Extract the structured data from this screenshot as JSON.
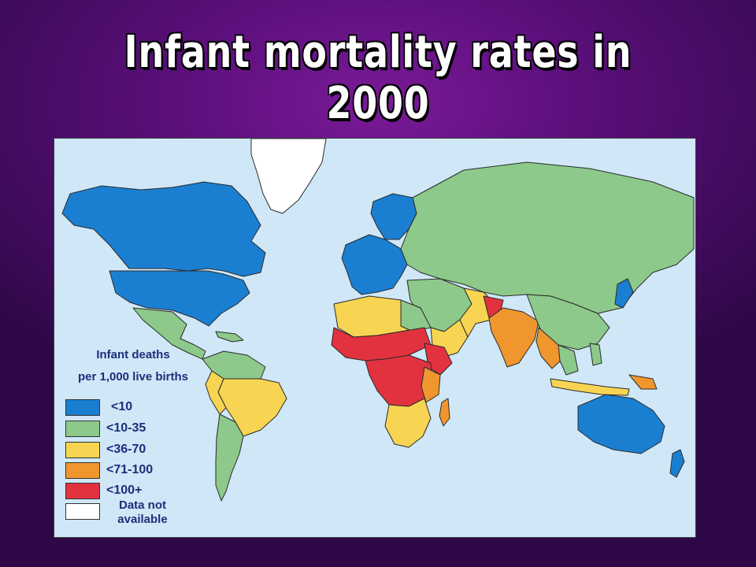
{
  "slide": {
    "title": "Infant mortality rates in 2000"
  },
  "legend": {
    "title_line1": "Infant deaths",
    "title_line2": "per 1,000 live births",
    "items": [
      {
        "label": "<10",
        "color": "#1b7fd1"
      },
      {
        "label": "<10-35",
        "color": "#8dc98a"
      },
      {
        "label": "<36-70",
        "color": "#f7d552"
      },
      {
        "label": "<71-100",
        "color": "#f0962e"
      },
      {
        "label": "<100+",
        "color": "#e2323f"
      }
    ],
    "no_data": {
      "label_line1": "Data not",
      "label_line2": "available",
      "color": "#ffffff"
    }
  },
  "colors": {
    "ocean": "#cfe7f7",
    "border": "#2a2a2a",
    "background_purple": "#5a0f7a"
  }
}
